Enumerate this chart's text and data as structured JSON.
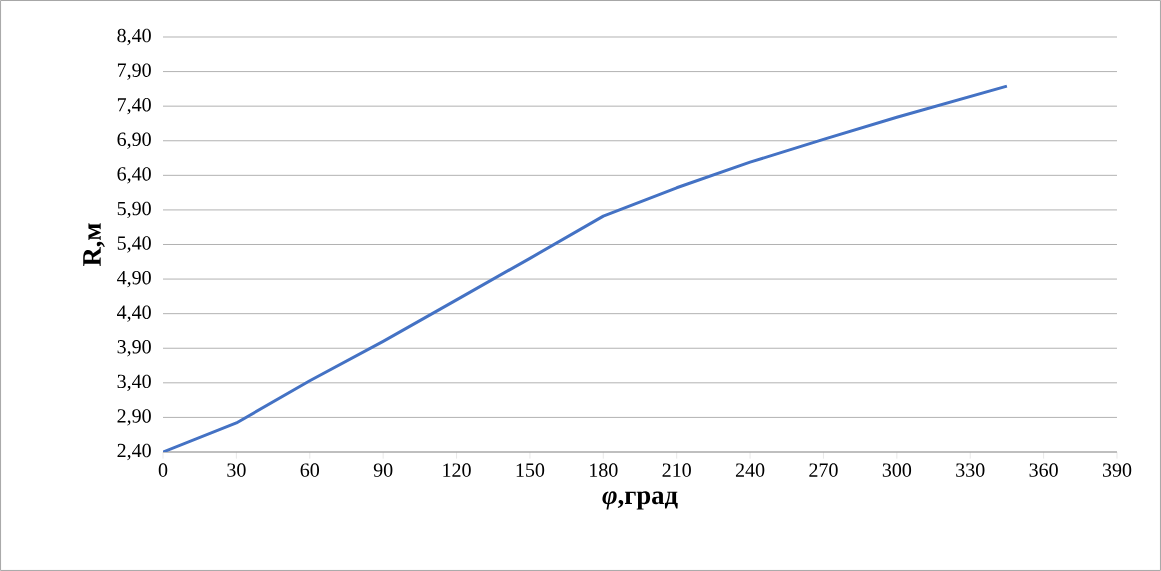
{
  "chart_data": {
    "type": "line",
    "xlabel": "*φ*,град",
    "ylabel": "R,м",
    "x": [
      0,
      30,
      60,
      90,
      120,
      150,
      180,
      210,
      240,
      270,
      300,
      345
    ],
    "series": [
      {
        "color": "#4472c4",
        "values": [
          2.4,
          2.82,
          3.43,
          4.0,
          4.6,
          5.2,
          5.81,
          6.22,
          6.59,
          6.92,
          7.24,
          7.69
        ]
      }
    ],
    "xlim": [
      0,
      390
    ],
    "xticks": [
      0,
      30,
      60,
      90,
      120,
      150,
      180,
      210,
      240,
      270,
      300,
      330,
      360,
      390
    ],
    "ylim": [
      2.4,
      8.4
    ],
    "yticks": [
      {
        "value": 2.4,
        "label": "2,40"
      },
      {
        "value": 2.9,
        "label": "2,90"
      },
      {
        "value": 3.4,
        "label": "3,40"
      },
      {
        "value": 3.9,
        "label": "3,90"
      },
      {
        "value": 4.4,
        "label": "4,40"
      },
      {
        "value": 4.9,
        "label": "4,90"
      },
      {
        "value": 5.4,
        "label": "5,40"
      },
      {
        "value": 5.9,
        "label": "5,90"
      },
      {
        "value": 6.4,
        "label": "6,40"
      },
      {
        "value": 6.9,
        "label": "6,90"
      },
      {
        "value": 7.4,
        "label": "7,40"
      },
      {
        "value": 7.9,
        "label": "7,90"
      },
      {
        "value": 8.4,
        "label": "8,40"
      }
    ],
    "grid": "y",
    "legend": false,
    "marker": "none",
    "line_style": "solid"
  }
}
